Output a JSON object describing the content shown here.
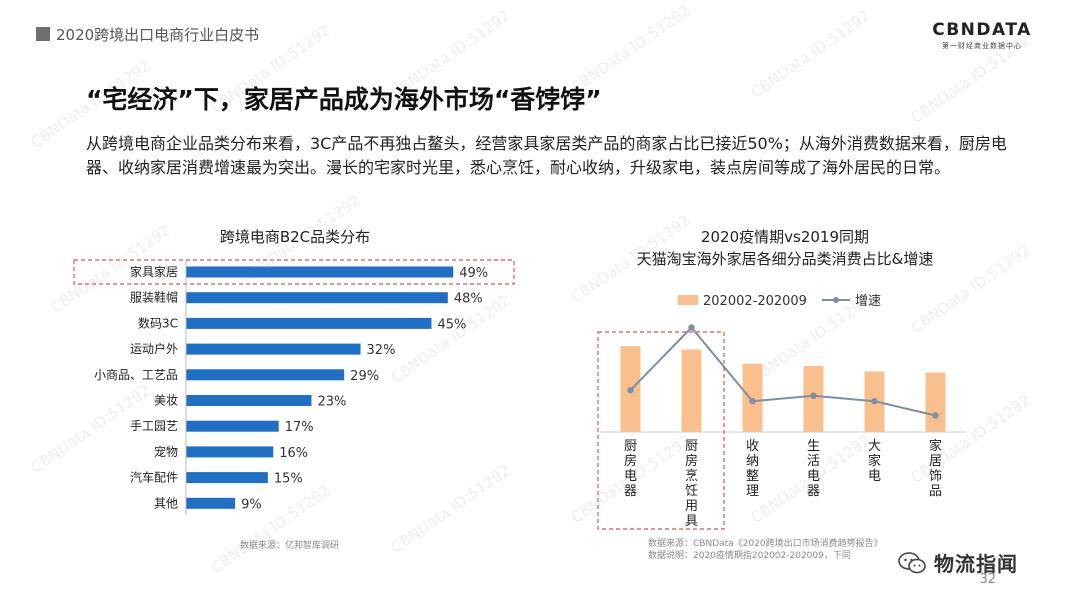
{
  "header": {
    "report_title": "2020跨境出口电商行业白皮书"
  },
  "logo": {
    "brand": "CBNDATA",
    "subtitle": "第一财经商业数据中心"
  },
  "slide": {
    "title": "“宅经济”下，家居产品成为海外市场“香饽饽”",
    "intro": "从跨境电商企业品类分布来看，3C产品不再独占鳌头，经营家具家居类产品的商家占比已接近50%；从海外消费数据来看，厨房电器、收纳家居消费增速最为突出。漫长的宅家时光里，悉心烹饪，耐心收纳，升级家电，装点房间等成了海外居民的日常。",
    "page_number": "32"
  },
  "watermark": {
    "text": "CBNData ID:51292"
  },
  "footer": {
    "wechat_name": "物流指闻",
    "source1": "数据来源：亿邦智库调研",
    "source2_line1": "数据来源：CBNData《2020跨境出口市场消费趋势报告》",
    "source2_line2": "数据说明：2020疫情期指202002-202009，下同"
  },
  "colors": {
    "bar_blue": "#1f6fc4",
    "bar_orange": "#f9c08e",
    "line_gray": "#7d8fa3",
    "highlight_red": "#d9534f"
  },
  "chart_data": [
    {
      "type": "bar",
      "orientation": "horizontal",
      "title": "跨境电商B2C品类分布",
      "categories": [
        "家具家居",
        "服装鞋帽",
        "数码3C",
        "运动户外",
        "小商品、工艺品",
        "美妆",
        "手工园艺",
        "宠物",
        "汽车配件",
        "其他"
      ],
      "values": [
        49,
        48,
        45,
        32,
        29,
        23,
        17,
        16,
        15,
        9
      ],
      "value_labels": [
        "49%",
        "48%",
        "45%",
        "32%",
        "29%",
        "23%",
        "17%",
        "16%",
        "15%",
        "9%"
      ],
      "highlight": "家具家居",
      "xlim": [
        0,
        55
      ]
    },
    {
      "type": "bar",
      "title_line1": "2020疫情期vs2019同期",
      "title_line2": "天猫淘宝海外家居各细分品类消费占比&增速",
      "categories": [
        "厨房电器",
        "厨房烹饪用具",
        "收纳整理",
        "生活电器",
        "大家电",
        "家居饰品"
      ],
      "series": [
        {
          "name": "202002-202009",
          "kind": "bar",
          "values": [
            0.78,
            0.75,
            0.62,
            0.6,
            0.55,
            0.54
          ]
        },
        {
          "name": "增速",
          "kind": "line",
          "values": [
            0.38,
            0.95,
            0.28,
            0.33,
            0.28,
            0.15
          ]
        }
      ],
      "legend_position": "top-left",
      "highlight": [
        "厨房电器",
        "厨房烹饪用具"
      ],
      "ylim": [
        0,
        1
      ]
    }
  ]
}
